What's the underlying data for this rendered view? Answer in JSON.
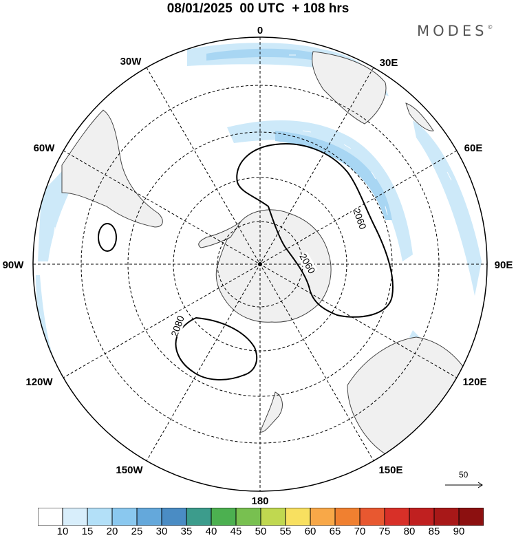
{
  "title": "08/01/2025  00 UTC  + 108 hrs",
  "brand": {
    "name": "MODES",
    "mark": "©"
  },
  "map": {
    "projection": "south polar stereographic",
    "center": "South Pole",
    "longitude_labels": [
      "0",
      "30E",
      "60E",
      "90E",
      "120E",
      "150E",
      "180",
      "150W",
      "120W",
      "90W",
      "60W",
      "30W"
    ],
    "grid": "dashed lat/lon graticule",
    "land_color": "#f0f0f0",
    "contours": [
      {
        "label": "2060",
        "color": "#000000"
      },
      {
        "label": "2060",
        "color": "#000000"
      },
      {
        "label": "2080",
        "color": "#000000"
      }
    ]
  },
  "colorbar": {
    "ticks": [
      "10",
      "15",
      "20",
      "25",
      "30",
      "35",
      "40",
      "45",
      "50",
      "55",
      "60",
      "65",
      "70",
      "75",
      "80",
      "85",
      "90"
    ],
    "colors": [
      "#ffffff",
      "#d8eefb",
      "#b3e0f8",
      "#8ac8ef",
      "#64a8db",
      "#4a8cc4",
      "#3c9c8c",
      "#4cb050",
      "#78c050",
      "#c0d850",
      "#f8e060",
      "#f8a848",
      "#f08030",
      "#e85830",
      "#d83028",
      "#c02020",
      "#a81818",
      "#8c1010"
    ]
  },
  "vector_reference": {
    "value": "50"
  }
}
